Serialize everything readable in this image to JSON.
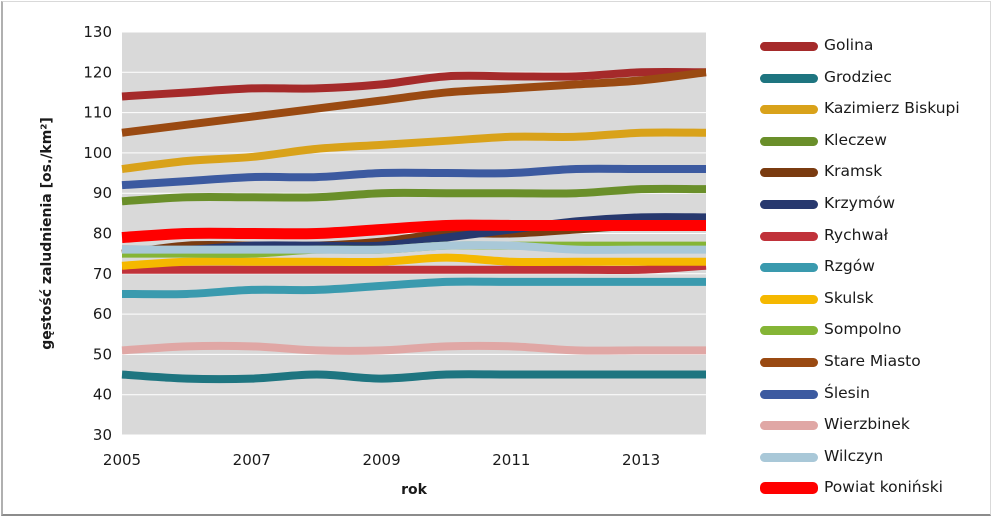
{
  "chart_data": {
    "type": "line",
    "title": "",
    "xlabel": "rok",
    "ylabel": "gęstość zaludnienia [os./km²]",
    "xlim": [
      2005,
      2014
    ],
    "ylim": [
      30,
      130
    ],
    "x_ticks": [
      "2005",
      "2007",
      "2009",
      "2011",
      "2013"
    ],
    "x_tick_values": [
      2005,
      2007,
      2009,
      2011,
      2013
    ],
    "y_ticks": [
      "30",
      "40",
      "50",
      "60",
      "70",
      "80",
      "90",
      "100",
      "110",
      "120",
      "130"
    ],
    "grid": true,
    "legend_position": "right",
    "x": [
      2005,
      2006,
      2007,
      2008,
      2009,
      2010,
      2011,
      2012,
      2013,
      2014
    ],
    "series": [
      {
        "name": "Golina",
        "color": "#a52a2a",
        "values": [
          114,
          115,
          116,
          116,
          117,
          119,
          119,
          119,
          120,
          120
        ]
      },
      {
        "name": "Grodziec",
        "color": "#1e7580",
        "values": [
          45,
          44,
          44,
          45,
          44,
          45,
          45,
          45,
          45,
          45
        ]
      },
      {
        "name": "Kazimierz Biskupi",
        "color": "#d9a21a",
        "values": [
          96,
          98,
          99,
          101,
          102,
          103,
          104,
          104,
          105,
          105
        ]
      },
      {
        "name": "Kleczew",
        "color": "#6a8f2a",
        "values": [
          88,
          89,
          89,
          89,
          90,
          90,
          90,
          90,
          91,
          91
        ]
      },
      {
        "name": "Kramsk",
        "color": "#7a3b10",
        "values": [
          75,
          77,
          77,
          77,
          78,
          80,
          80,
          81,
          82,
          82
        ]
      },
      {
        "name": "Krzymów",
        "color": "#27386e",
        "values": [
          76,
          76,
          77,
          77,
          77,
          79,
          81,
          83,
          84,
          84
        ]
      },
      {
        "name": "Rychwał",
        "color": "#c0323a",
        "values": [
          71,
          71,
          71,
          71,
          71,
          71,
          71,
          71,
          71,
          72
        ]
      },
      {
        "name": "Rzgów",
        "color": "#3a9aae",
        "values": [
          65,
          65,
          66,
          66,
          67,
          68,
          68,
          68,
          68,
          68
        ]
      },
      {
        "name": "Skulsk",
        "color": "#f5b800",
        "values": [
          72,
          73,
          73,
          73,
          73,
          74,
          73,
          73,
          73,
          73
        ]
      },
      {
        "name": "Sompolno",
        "color": "#85b536",
        "values": [
          75,
          75,
          75,
          76,
          76,
          77,
          77,
          77,
          77,
          77
        ]
      },
      {
        "name": "Stare Miasto",
        "color": "#9a4a12",
        "values": [
          105,
          107,
          109,
          111,
          113,
          115,
          116,
          117,
          118,
          120
        ]
      },
      {
        "name": "Ślesin",
        "color": "#3c5aa0",
        "values": [
          92,
          93,
          94,
          94,
          95,
          95,
          95,
          96,
          96,
          96
        ]
      },
      {
        "name": "Wierzbinek",
        "color": "#e0a7a5",
        "values": [
          51,
          52,
          52,
          51,
          51,
          52,
          52,
          51,
          51,
          51
        ]
      },
      {
        "name": "Wilczyn",
        "color": "#a9c8d8",
        "values": [
          76,
          76,
          76,
          76,
          76,
          77,
          77,
          76,
          76,
          76
        ]
      },
      {
        "name": "Powiat koniński",
        "color": "#ff0000",
        "values": [
          79,
          80,
          80,
          80,
          81,
          82,
          82,
          82,
          82,
          82
        ]
      }
    ]
  }
}
